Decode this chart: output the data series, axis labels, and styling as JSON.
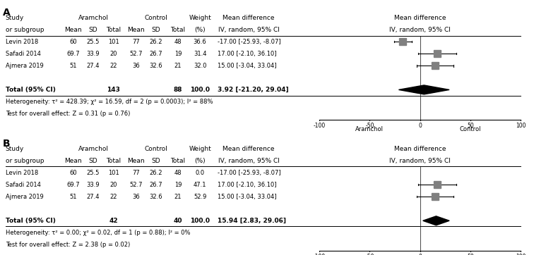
{
  "panel_A": {
    "label": "A",
    "studies": [
      {
        "name": "Levin 2018",
        "arm_mean": 60,
        "arm_sd": 25.5,
        "arm_n": 101,
        "ctrl_mean": 77,
        "ctrl_sd": 26.2,
        "ctrl_n": 48,
        "weight": 36.6,
        "md": -17.0,
        "ci_lo": -25.93,
        "ci_hi": -8.07
      },
      {
        "name": "Safadi 2014",
        "arm_mean": 69.7,
        "arm_sd": 33.9,
        "arm_n": 20,
        "ctrl_mean": 52.7,
        "ctrl_sd": 26.7,
        "ctrl_n": 19,
        "weight": 31.4,
        "md": 17.0,
        "ci_lo": -2.1,
        "ci_hi": 36.1
      },
      {
        "name": "Ajmera 2019",
        "arm_mean": 51,
        "arm_sd": 27.4,
        "arm_n": 22,
        "ctrl_mean": 36,
        "ctrl_sd": 32.6,
        "ctrl_n": 21,
        "weight": 32.0,
        "md": 15.0,
        "ci_lo": -3.04,
        "ci_hi": 33.04
      }
    ],
    "total_n_arm": 143,
    "total_n_ctrl": 88,
    "total_weight": "100.0",
    "total_md": 3.92,
    "total_ci_lo": -21.2,
    "total_ci_hi": 29.04,
    "heterogeneity": "Heterogeneity: τ² = 428.39; χ² = 16.59, df = 2 (p = 0.0003); I² = 88%",
    "overall_effect": "Test for overall effect: Z = 0.31 (p = 0.76)"
  },
  "panel_B": {
    "label": "B",
    "studies": [
      {
        "name": "Levin 2018",
        "arm_mean": 60,
        "arm_sd": 25.5,
        "arm_n": 101,
        "ctrl_mean": 77,
        "ctrl_sd": 26.2,
        "ctrl_n": 48,
        "weight": 0.0,
        "md": -17.0,
        "ci_lo": -25.93,
        "ci_hi": -8.07
      },
      {
        "name": "Safadi 2014",
        "arm_mean": 69.7,
        "arm_sd": 33.9,
        "arm_n": 20,
        "ctrl_mean": 52.7,
        "ctrl_sd": 26.7,
        "ctrl_n": 19,
        "weight": 47.1,
        "md": 17.0,
        "ci_lo": -2.1,
        "ci_hi": 36.1
      },
      {
        "name": "Ajmera 2019",
        "arm_mean": 51,
        "arm_sd": 27.4,
        "arm_n": 22,
        "ctrl_mean": 36,
        "ctrl_sd": 32.6,
        "ctrl_n": 21,
        "weight": 52.9,
        "md": 15.0,
        "ci_lo": -3.04,
        "ci_hi": 33.04
      }
    ],
    "total_n_arm": 42,
    "total_n_ctrl": 40,
    "total_weight": "100.0",
    "total_md": 15.94,
    "total_ci_lo": 2.83,
    "total_ci_hi": 29.06,
    "heterogeneity": "Heterogeneity: τ² = 0.00; χ² = 0.02, df = 1 (p = 0.88); I² = 0%",
    "overall_effect": "Test for overall effect: Z = 2.38 (p = 0.02)"
  },
  "axis_min": -100,
  "axis_max": 100,
  "axis_ticks": [
    -100,
    -50,
    0,
    50,
    100
  ],
  "axis_label_left": "Aramchol",
  "axis_label_right": "Control",
  "text_color": "#000000",
  "diamond_color": "#000000",
  "marker_color": "#808080",
  "line_color": "#000000",
  "bg_color": "#ffffff",
  "font_size": 6.5,
  "font_size_sm": 6.0
}
